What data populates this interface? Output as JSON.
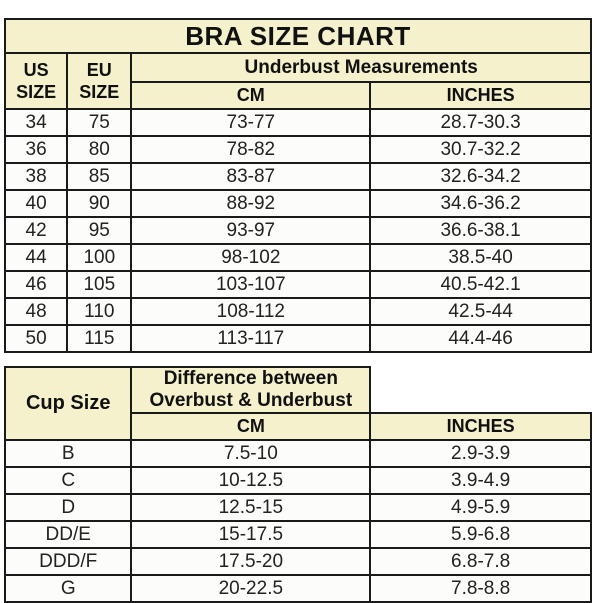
{
  "title": "BRA SIZE CHART",
  "colors": {
    "header_bg": "#f5f1cd",
    "row_bg": "#fcfcfa",
    "border": "#1a1a1a",
    "header_text": "#111111",
    "data_text": "#222222",
    "page_bg": "#ffffff"
  },
  "size_table": {
    "col_us": "US SIZE",
    "col_eu": "EU SIZE",
    "group_header": "Underbust Measurements",
    "col_cm": "CM",
    "col_inches": "INCHES",
    "rows": [
      {
        "us": "34",
        "eu": "75",
        "cm": "73-77",
        "inches": "28.7-30.3"
      },
      {
        "us": "36",
        "eu": "80",
        "cm": "78-82",
        "inches": "30.7-32.2"
      },
      {
        "us": "38",
        "eu": "85",
        "cm": "83-87",
        "inches": "32.6-34.2"
      },
      {
        "us": "40",
        "eu": "90",
        "cm": "88-92",
        "inches": "34.6-36.2"
      },
      {
        "us": "42",
        "eu": "95",
        "cm": "93-97",
        "inches": "36.6-38.1"
      },
      {
        "us": "44",
        "eu": "100",
        "cm": "98-102",
        "inches": "38.5-40"
      },
      {
        "us": "46",
        "eu": "105",
        "cm": "103-107",
        "inches": "40.5-42.1"
      },
      {
        "us": "48",
        "eu": "110",
        "cm": "108-112",
        "inches": "42.5-44"
      },
      {
        "us": "50",
        "eu": "115",
        "cm": "113-117",
        "inches": "44.4-46"
      }
    ]
  },
  "cup_table": {
    "col_cup": "Cup Size",
    "group_header": "Difference between Overbust & Underbust",
    "col_cm": "CM",
    "col_inches": "INCHES",
    "rows": [
      {
        "cup": "B",
        "cm": "7.5-10",
        "inches": "2.9-3.9"
      },
      {
        "cup": "C",
        "cm": "10-12.5",
        "inches": "3.9-4.9"
      },
      {
        "cup": "D",
        "cm": "12.5-15",
        "inches": "4.9-5.9"
      },
      {
        "cup": "DD/E",
        "cm": "15-17.5",
        "inches": "5.9-6.8"
      },
      {
        "cup": "DDD/F",
        "cm": "17.5-20",
        "inches": "6.8-7.8"
      },
      {
        "cup": "G",
        "cm": "20-22.5",
        "inches": "7.8-8.8"
      }
    ]
  },
  "chart_data": [
    {
      "type": "table",
      "title": "BRA SIZE CHART",
      "columns": [
        "US SIZE",
        "EU SIZE",
        "Underbust Measurements CM",
        "Underbust Measurements INCHES"
      ],
      "rows": [
        [
          "34",
          "75",
          "73-77",
          "28.7-30.3"
        ],
        [
          "36",
          "80",
          "78-82",
          "30.7-32.2"
        ],
        [
          "38",
          "85",
          "83-87",
          "32.6-34.2"
        ],
        [
          "40",
          "90",
          "88-92",
          "34.6-36.2"
        ],
        [
          "42",
          "95",
          "93-97",
          "36.6-38.1"
        ],
        [
          "44",
          "100",
          "98-102",
          "38.5-40"
        ],
        [
          "46",
          "105",
          "103-107",
          "40.5-42.1"
        ],
        [
          "48",
          "110",
          "108-112",
          "42.5-44"
        ],
        [
          "50",
          "115",
          "113-117",
          "44.4-46"
        ]
      ]
    },
    {
      "type": "table",
      "title": "Cup Size",
      "columns": [
        "Cup Size",
        "Difference between Overbust & Underbust CM",
        "Difference between Overbust & Underbust INCHES"
      ],
      "rows": [
        [
          "B",
          "7.5-10",
          "2.9-3.9"
        ],
        [
          "C",
          "10-12.5",
          "3.9-4.9"
        ],
        [
          "D",
          "12.5-15",
          "4.9-5.9"
        ],
        [
          "DD/E",
          "15-17.5",
          "5.9-6.8"
        ],
        [
          "DDD/F",
          "17.5-20",
          "6.8-7.8"
        ],
        [
          "G",
          "20-22.5",
          "7.8-8.8"
        ]
      ]
    }
  ]
}
